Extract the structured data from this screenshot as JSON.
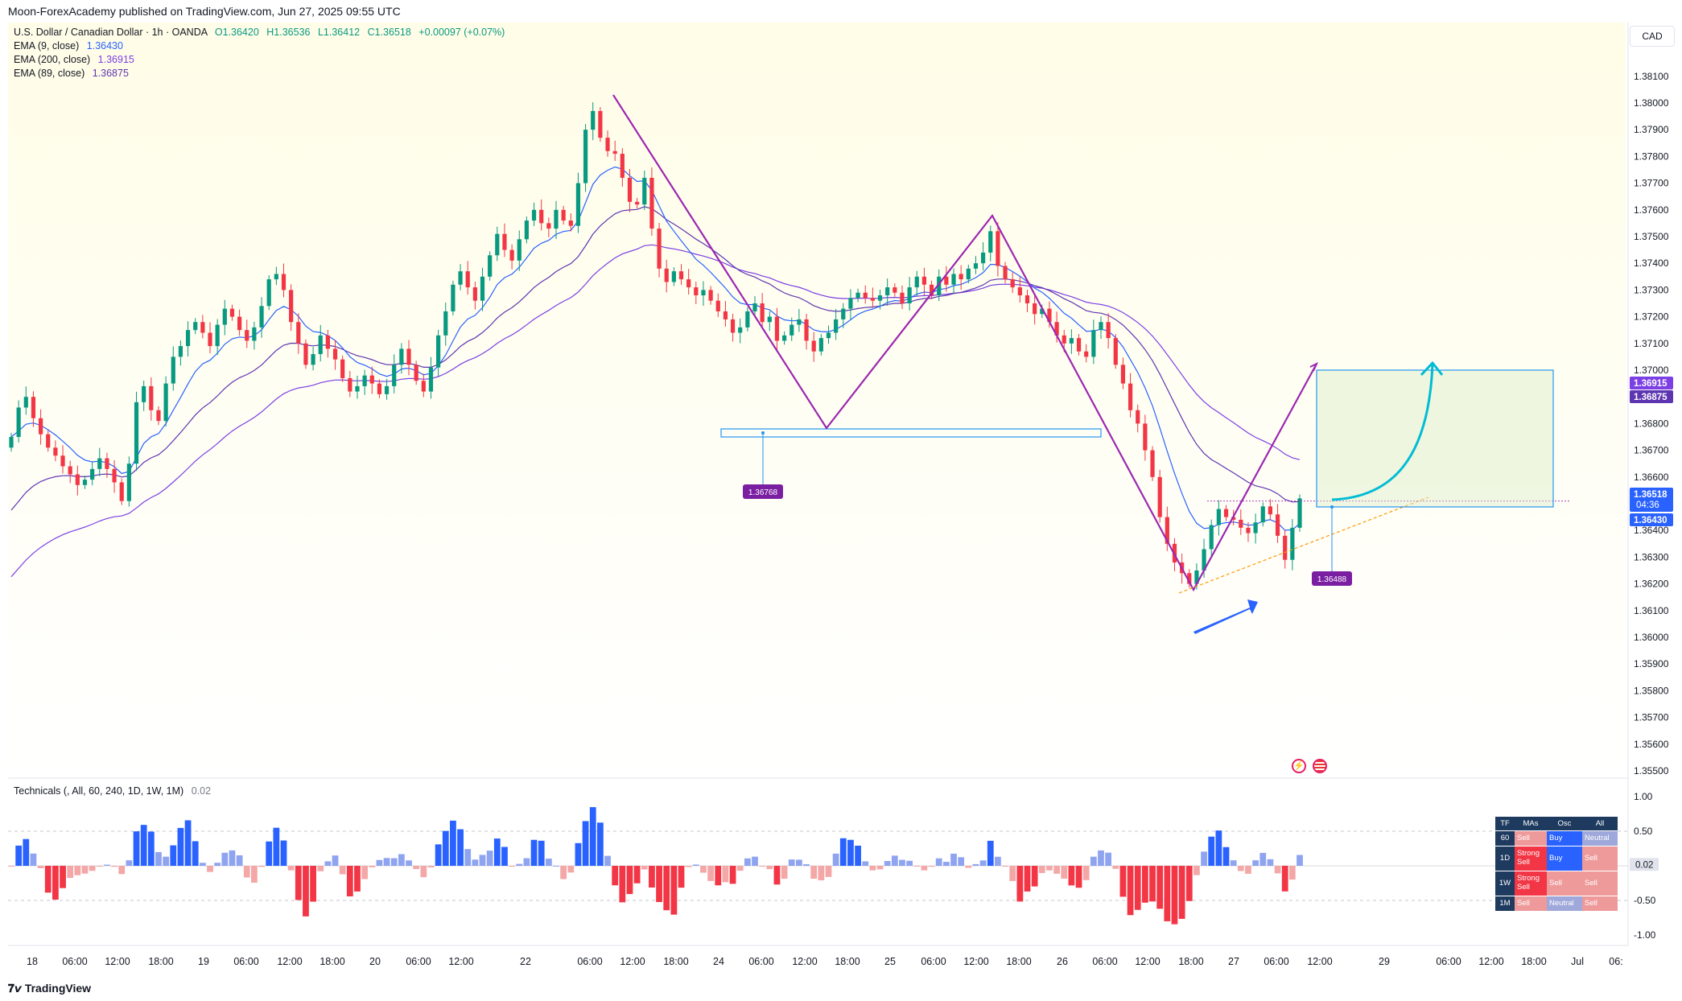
{
  "header": {
    "publisher": "Moon-ForexAcademy published on TradingView.com, Jun 27, 2025 09:55 UTC",
    "symbol": "U.S. Dollar / Canadian Dollar · 1h · OANDA",
    "ohlc": {
      "o": "O1.36420",
      "h": "H1.36536",
      "l": "L1.36412",
      "c": "C1.36518",
      "chg": "+0.00097 (+0.07%)"
    },
    "currency": "CAD"
  },
  "legend": [
    {
      "label": "EMA (9, close)",
      "value": "1.36430",
      "color": "#2962ff"
    },
    {
      "label": "EMA (200, close)",
      "value": "1.36915",
      "color": "#7b3fe4"
    },
    {
      "label": "EMA (89, close)",
      "value": "1.36875",
      "color": "#5e35b1"
    }
  ],
  "annotations": {
    "support_label": "1.36768",
    "entry_label": "1.36488"
  },
  "price_tags": {
    "ema200": "1.36915",
    "ema89": "1.36875",
    "last": "1.36518",
    "countdown": "04:36",
    "ema9": "1.36430"
  },
  "colors": {
    "up": "#089981",
    "down": "#f23645",
    "ema9": "#2962ff",
    "ema89": "#5e35b1",
    "ema200": "#7b3fe4",
    "zigzag": "#9c27b0",
    "target_box": "#2196f3",
    "arrow_cyan": "#00bcd4",
    "arrow_blue": "#2962ff",
    "background_top": "#fffde7"
  },
  "indicator": {
    "title": "Technicals (, All, 60, 240, 1D, 1W, 1M)",
    "value": "0.02",
    "last_tag": "0.02",
    "axis": [
      "1.00",
      "0.50",
      "-0.50",
      "-1.00"
    ]
  },
  "tech_table": {
    "headers": [
      "TF",
      "MAs",
      "Osc",
      "All"
    ],
    "rows": [
      {
        "tf": "60",
        "mas": "Sell",
        "osc": "Buy",
        "all": "Neutral"
      },
      {
        "tf": "1D",
        "mas": "Strong Sell",
        "osc": "Buy",
        "all": "Sell"
      },
      {
        "tf": "1W",
        "mas": "Strong Sell",
        "osc": "Sell",
        "all": "Sell"
      },
      {
        "tf": "1M",
        "mas": "Sell",
        "osc": "Neutral",
        "all": "Sell"
      }
    ]
  },
  "time_axis": [
    "18",
    "06:00",
    "12:00",
    "18:00",
    "19",
    "06:00",
    "12:00",
    "18:00",
    "20",
    "06:00",
    "12:00",
    "22",
    "06:00",
    "12:00",
    "18:00",
    "24",
    "06:00",
    "12:00",
    "18:00",
    "25",
    "06:00",
    "12:00",
    "18:00",
    "26",
    "06:00",
    "12:00",
    "18:00",
    "27",
    "06:00",
    "12:00",
    "29",
    "06:00",
    "12:00",
    "18:00",
    "Jul",
    "06:"
  ],
  "footer": {
    "brand": "TradingView"
  },
  "chart_data": {
    "type": "candlestick",
    "title": "U.S. Dollar / Canadian Dollar · 1h · OANDA",
    "ylim": [
      1.355,
      1.3825
    ],
    "y_ticks": [
      "1.38100",
      "1.38000",
      "1.37900",
      "1.37800",
      "1.37700",
      "1.37600",
      "1.37500",
      "1.37400",
      "1.37300",
      "1.37200",
      "1.37100",
      "1.37000",
      "1.36900",
      "1.36800",
      "1.36700",
      "1.36600",
      "1.36500",
      "1.36400",
      "1.36300",
      "1.36200",
      "1.36100",
      "1.36000",
      "1.35900",
      "1.35800",
      "1.35700",
      "1.35600",
      "1.35500"
    ],
    "closes": [
      1.3675,
      1.3686,
      1.369,
      1.3682,
      1.3676,
      1.3671,
      1.3668,
      1.3664,
      1.3661,
      1.3657,
      1.3659,
      1.3663,
      1.3667,
      1.3663,
      1.3658,
      1.3651,
      1.3665,
      1.3688,
      1.3694,
      1.3685,
      1.3681,
      1.3695,
      1.3705,
      1.3709,
      1.3715,
      1.3718,
      1.3714,
      1.3709,
      1.3717,
      1.3723,
      1.372,
      1.3715,
      1.3711,
      1.3716,
      1.3724,
      1.3734,
      1.3736,
      1.373,
      1.3718,
      1.371,
      1.3702,
      1.3706,
      1.3713,
      1.3708,
      1.3704,
      1.3697,
      1.3692,
      1.3694,
      1.3698,
      1.3695,
      1.3691,
      1.3694,
      1.3702,
      1.3708,
      1.3702,
      1.3696,
      1.3692,
      1.3701,
      1.3713,
      1.3722,
      1.3732,
      1.3737,
      1.3731,
      1.3726,
      1.3735,
      1.3743,
      1.3751,
      1.3745,
      1.3741,
      1.3749,
      1.3756,
      1.376,
      1.3755,
      1.3753,
      1.376,
      1.3756,
      1.3754,
      1.377,
      1.379,
      1.3797,
      1.3787,
      1.3782,
      1.3781,
      1.3772,
      1.3763,
      1.3762,
      1.3772,
      1.3753,
      1.3738,
      1.3733,
      1.3737,
      1.3734,
      1.3731,
      1.3728,
      1.373,
      1.3726,
      1.3722,
      1.3719,
      1.3714,
      1.3716,
      1.3722,
      1.3725,
      1.3718,
      1.372,
      1.3711,
      1.3713,
      1.3717,
      1.3719,
      1.3711,
      1.3707,
      1.3712,
      1.3714,
      1.3719,
      1.3723,
      1.3727,
      1.3729,
      1.3727,
      1.3726,
      1.3728,
      1.3731,
      1.3729,
      1.3725,
      1.3731,
      1.3735,
      1.3732,
      1.3728,
      1.3735,
      1.3732,
      1.3736,
      1.3734,
      1.3738,
      1.374,
      1.3744,
      1.3752,
      1.3739,
      1.3734,
      1.3731,
      1.3728,
      1.3725,
      1.3721,
      1.3723,
      1.3718,
      1.3713,
      1.371,
      1.3712,
      1.3707,
      1.3705,
      1.3715,
      1.3718,
      1.3712,
      1.3702,
      1.3695,
      1.3685,
      1.368,
      1.367,
      1.366,
      1.3645,
      1.3635,
      1.3628,
      1.3624,
      1.362,
      1.3625,
      1.3633,
      1.3642,
      1.3648,
      1.3645,
      1.3644,
      1.3641,
      1.3639,
      1.3643,
      1.3649,
      1.3646,
      1.3638,
      1.3629,
      1.3641,
      1.3652
    ],
    "ema9_series": "EMA (9, close)",
    "ema89_series": "EMA (89, close)",
    "ema200_series": "EMA (200, close)",
    "support_level": 1.36768,
    "entry_level": 1.36488,
    "target_zone": [
      1.36488,
      1.37
    ]
  }
}
